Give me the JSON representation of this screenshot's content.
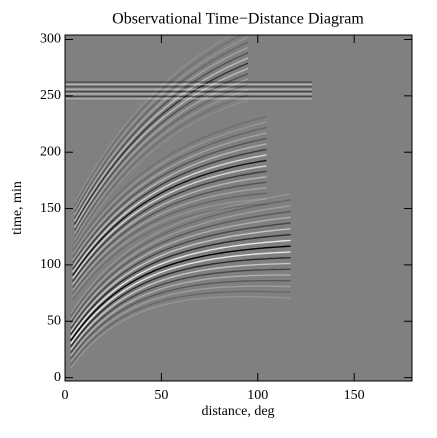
{
  "chart_data": {
    "type": "heatmap",
    "title": "Observational Time−Distance Diagram",
    "xlabel": "distance, deg",
    "ylabel": "time, min",
    "xlim": [
      0,
      180
    ],
    "ylim": [
      -3,
      304
    ],
    "xticks": [
      0,
      50,
      100,
      150
    ],
    "yticks": [
      0,
      50,
      100,
      150,
      200,
      250,
      300
    ]
  }
}
